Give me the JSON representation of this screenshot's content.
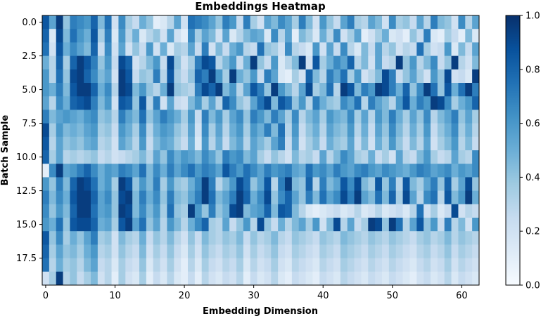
{
  "chart_data": {
    "type": "heatmap",
    "title": "Embeddings Heatmap",
    "xlabel": "Embedding Dimension",
    "ylabel": "Batch Sample",
    "colormap": "Blues",
    "color_low": "#f7fbff",
    "color_high": "#08306b",
    "n_rows": 20,
    "n_cols": 63,
    "xticks": [
      "0",
      "10",
      "20",
      "30",
      "40",
      "50",
      "60"
    ],
    "yticks": [
      "0.0",
      "2.5",
      "5.0",
      "7.5",
      "10.0",
      "12.5",
      "15.0",
      "17.5"
    ],
    "colorbar_ticks": [
      "0.0",
      "0.2",
      "0.4",
      "0.6",
      "0.8",
      "1.0"
    ],
    "vmin": 0.0,
    "vmax": 1.0,
    "values": [
      [
        0.85,
        0.55,
        0.95,
        0.4,
        0.7,
        0.65,
        0.6,
        0.8,
        0.45,
        0.75,
        0.2,
        0.65,
        0.35,
        0.25,
        0.5,
        0.4,
        0.1,
        0.15,
        0.3,
        0.55,
        0.2,
        0.75,
        0.7,
        0.65,
        0.55,
        0.4,
        0.7,
        0.6,
        0.25,
        0.7,
        0.35,
        0.2,
        0.55,
        0.45,
        0.65,
        0.55,
        0.35,
        0.7,
        0.45,
        0.2,
        0.6,
        0.4,
        0.25,
        0.55,
        0.7,
        0.35,
        0.3,
        0.55,
        0.45,
        0.2,
        0.65,
        0.35,
        0.4,
        0.25,
        0.55,
        0.3,
        0.7,
        0.45,
        0.4,
        0.2,
        0.65,
        0.3,
        0.55
      ],
      [
        0.8,
        0.15,
        0.9,
        0.45,
        0.75,
        0.6,
        0.5,
        0.85,
        0.35,
        0.7,
        0.15,
        0.6,
        0.3,
        0.5,
        0.15,
        0.3,
        0.4,
        0.2,
        0.55,
        0.2,
        0.1,
        0.65,
        0.35,
        0.55,
        0.45,
        0.2,
        0.55,
        0.15,
        0.3,
        0.45,
        0.55,
        0.5,
        0.15,
        0.65,
        0.3,
        0.55,
        0.1,
        0.45,
        0.35,
        0.15,
        0.5,
        0.3,
        0.65,
        0.2,
        0.35,
        0.55,
        0.1,
        0.2,
        0.35,
        0.5,
        0.15,
        0.2,
        0.1,
        0.4,
        0.25,
        0.7,
        0.15,
        0.1,
        0.35,
        0.25,
        0.1,
        0.45,
        0.15
      ],
      [
        0.75,
        0.2,
        0.85,
        0.5,
        0.65,
        0.55,
        0.45,
        0.8,
        0.25,
        0.65,
        0.2,
        0.55,
        0.2,
        0.4,
        0.25,
        0.6,
        0.2,
        0.5,
        0.15,
        0.35,
        0.3,
        0.55,
        0.25,
        0.7,
        0.2,
        0.45,
        0.25,
        0.5,
        0.6,
        0.3,
        0.25,
        0.75,
        0.4,
        0.35,
        0.2,
        0.65,
        0.3,
        0.25,
        0.15,
        0.6,
        0.2,
        0.55,
        0.25,
        0.65,
        0.3,
        0.15,
        0.45,
        0.25,
        0.55,
        0.3,
        0.4,
        0.2,
        0.3,
        0.25,
        0.75,
        0.35,
        0.2,
        0.25,
        0.6,
        0.15,
        0.45,
        0.25,
        0.55
      ],
      [
        0.5,
        0.3,
        0.8,
        0.35,
        0.8,
        0.95,
        0.85,
        0.7,
        0.4,
        0.6,
        0.25,
        0.9,
        0.8,
        0.2,
        0.3,
        0.45,
        0.6,
        0.25,
        0.9,
        0.4,
        0.2,
        0.35,
        0.7,
        0.9,
        0.85,
        0.3,
        0.45,
        0.6,
        0.25,
        0.5,
        0.95,
        0.4,
        0.25,
        0.6,
        0.15,
        0.3,
        0.45,
        0.95,
        0.2,
        0.85,
        0.35,
        0.5,
        0.65,
        0.55,
        0.8,
        0.3,
        0.45,
        0.2,
        0.55,
        0.25,
        0.3,
        0.95,
        0.4,
        0.6,
        0.3,
        0.45,
        0.65,
        0.25,
        0.4,
        0.95,
        0.3,
        0.2,
        0.45
      ],
      [
        0.6,
        0.3,
        0.75,
        0.4,
        0.9,
        0.95,
        0.8,
        0.65,
        0.45,
        0.55,
        0.2,
        0.95,
        0.85,
        0.25,
        0.4,
        0.35,
        0.7,
        0.3,
        0.85,
        0.35,
        0.25,
        0.4,
        0.8,
        0.7,
        0.95,
        0.6,
        0.35,
        0.95,
        0.5,
        0.4,
        0.6,
        0.25,
        0.7,
        0.55,
        0.15,
        0.1,
        0.35,
        0.2,
        0.8,
        0.45,
        0.3,
        0.7,
        0.55,
        0.75,
        0.35,
        0.6,
        0.2,
        0.3,
        0.45,
        0.9,
        0.7,
        0.25,
        0.4,
        0.55,
        0.35,
        0.2,
        0.6,
        0.4,
        0.9,
        0.2,
        0.25,
        0.15,
        0.95
      ],
      [
        0.6,
        0.5,
        0.7,
        0.45,
        0.85,
        0.95,
        0.95,
        0.8,
        0.5,
        0.65,
        0.3,
        0.95,
        0.9,
        0.45,
        0.6,
        0.4,
        0.3,
        0.5,
        0.95,
        0.4,
        0.35,
        0.3,
        0.7,
        0.9,
        0.8,
        0.95,
        0.45,
        0.6,
        0.3,
        0.55,
        0.85,
        0.7,
        0.4,
        0.95,
        0.6,
        0.45,
        0.3,
        0.55,
        0.9,
        0.35,
        0.45,
        0.75,
        0.3,
        0.95,
        0.85,
        0.45,
        0.7,
        0.6,
        0.95,
        0.9,
        0.7,
        0.5,
        0.8,
        0.4,
        0.65,
        0.95,
        0.75,
        0.4,
        0.85,
        0.5,
        0.75,
        0.95,
        0.7
      ],
      [
        0.55,
        0.3,
        0.65,
        0.5,
        0.8,
        0.85,
        0.9,
        0.7,
        0.45,
        0.6,
        0.2,
        0.85,
        0.8,
        0.4,
        0.85,
        0.3,
        0.7,
        0.2,
        0.55,
        0.25,
        0.2,
        0.45,
        0.6,
        0.35,
        0.55,
        0.3,
        0.8,
        0.65,
        0.4,
        0.3,
        0.55,
        0.75,
        0.9,
        0.45,
        0.85,
        0.75,
        0.4,
        0.6,
        0.3,
        0.7,
        0.5,
        0.4,
        0.35,
        0.65,
        0.55,
        0.75,
        0.3,
        0.7,
        0.55,
        0.45,
        0.3,
        0.6,
        0.85,
        0.5,
        0.7,
        0.6,
        0.95,
        0.9,
        0.65,
        0.35,
        0.5,
        0.6,
        0.8
      ],
      [
        0.7,
        0.45,
        0.55,
        0.6,
        0.55,
        0.5,
        0.6,
        0.65,
        0.4,
        0.45,
        0.3,
        0.7,
        0.55,
        0.45,
        0.75,
        0.4,
        0.55,
        0.7,
        0.6,
        0.5,
        0.35,
        0.6,
        0.25,
        0.7,
        0.45,
        0.6,
        0.35,
        0.55,
        0.65,
        0.4,
        0.7,
        0.6,
        0.45,
        0.7,
        0.55,
        0.35,
        0.65,
        0.3,
        0.45,
        0.55,
        0.35,
        0.6,
        0.5,
        0.45,
        0.65,
        0.35,
        0.55,
        0.3,
        0.6,
        0.45,
        0.7,
        0.5,
        0.35,
        0.55,
        0.4,
        0.65,
        0.3,
        0.45,
        0.55,
        0.7,
        0.4,
        0.55,
        0.35
      ],
      [
        0.9,
        0.35,
        0.6,
        0.45,
        0.5,
        0.45,
        0.55,
        0.6,
        0.35,
        0.4,
        0.25,
        0.6,
        0.5,
        0.35,
        0.65,
        0.3,
        0.5,
        0.6,
        0.55,
        0.4,
        0.3,
        0.55,
        0.2,
        0.65,
        0.35,
        0.55,
        0.3,
        0.5,
        0.6,
        0.35,
        0.6,
        0.5,
        0.7,
        0.45,
        0.75,
        0.3,
        0.6,
        0.25,
        0.4,
        0.5,
        0.3,
        0.55,
        0.45,
        0.4,
        0.6,
        0.3,
        0.5,
        0.25,
        0.55,
        0.4,
        0.65,
        0.45,
        0.3,
        0.5,
        0.35,
        0.6,
        0.25,
        0.4,
        0.5,
        0.65,
        0.35,
        0.5,
        0.3
      ],
      [
        0.85,
        0.3,
        0.55,
        0.4,
        0.45,
        0.4,
        0.5,
        0.55,
        0.3,
        0.35,
        0.2,
        0.55,
        0.45,
        0.3,
        0.6,
        0.25,
        0.45,
        0.55,
        0.5,
        0.35,
        0.25,
        0.5,
        0.15,
        0.6,
        0.3,
        0.5,
        0.25,
        0.45,
        0.55,
        0.3,
        0.55,
        0.45,
        0.35,
        0.55,
        0.7,
        0.25,
        0.55,
        0.2,
        0.35,
        0.45,
        0.25,
        0.5,
        0.4,
        0.35,
        0.55,
        0.25,
        0.45,
        0.2,
        0.5,
        0.35,
        0.6,
        0.4,
        0.25,
        0.45,
        0.3,
        0.55,
        0.2,
        0.35,
        0.45,
        0.6,
        0.3,
        0.45,
        0.25
      ],
      [
        0.8,
        0.35,
        0.55,
        0.3,
        0.35,
        0.3,
        0.35,
        0.4,
        0.25,
        0.3,
        0.2,
        0.25,
        0.3,
        0.35,
        0.45,
        0.3,
        0.55,
        0.4,
        0.65,
        0.5,
        0.6,
        0.55,
        0.45,
        0.65,
        0.55,
        0.4,
        0.7,
        0.6,
        0.65,
        0.45,
        0.55,
        0.35,
        0.25,
        0.4,
        0.3,
        0.2,
        0.45,
        0.3,
        0.35,
        0.25,
        0.55,
        0.3,
        0.45,
        0.65,
        0.55,
        0.35,
        0.3,
        0.5,
        0.25,
        0.35,
        0.2,
        0.55,
        0.3,
        0.25,
        0.45,
        0.6,
        0.35,
        0.25,
        0.3,
        0.55,
        0.35,
        0.3,
        0.65
      ],
      [
        0.1,
        0.65,
        0.95,
        0.55,
        0.6,
        0.7,
        0.8,
        0.65,
        0.5,
        0.6,
        0.55,
        0.7,
        0.65,
        0.55,
        0.75,
        0.45,
        0.65,
        0.5,
        0.7,
        0.55,
        0.65,
        0.75,
        0.6,
        0.7,
        0.65,
        0.55,
        0.85,
        0.7,
        0.6,
        0.75,
        0.65,
        0.55,
        0.7,
        0.6,
        0.65,
        0.7,
        0.55,
        0.5,
        0.75,
        0.6,
        0.65,
        0.55,
        0.7,
        0.6,
        0.55,
        0.65,
        0.7,
        0.6,
        0.55,
        0.65,
        0.6,
        0.55,
        0.5,
        0.6,
        0.7,
        0.65,
        0.55,
        0.6,
        0.65,
        0.5,
        0.6,
        0.55,
        0.65
      ],
      [
        0.6,
        0.4,
        0.7,
        0.45,
        0.8,
        0.95,
        0.9,
        0.75,
        0.5,
        0.6,
        0.35,
        0.95,
        0.85,
        0.4,
        0.6,
        0.45,
        0.7,
        0.35,
        0.6,
        0.4,
        0.35,
        0.5,
        0.65,
        0.95,
        0.7,
        0.3,
        0.45,
        0.6,
        0.9,
        0.75,
        0.4,
        0.55,
        0.85,
        0.3,
        0.7,
        0.95,
        0.45,
        0.4,
        0.8,
        0.3,
        0.7,
        0.45,
        0.55,
        0.85,
        0.65,
        0.9,
        0.45,
        0.35,
        0.85,
        0.4,
        0.7,
        0.3,
        0.85,
        0.45,
        0.35,
        0.55,
        0.7,
        0.4,
        0.8,
        0.35,
        0.55,
        0.9,
        0.4
      ],
      [
        0.7,
        0.45,
        0.65,
        0.5,
        0.85,
        0.95,
        0.95,
        0.8,
        0.55,
        0.65,
        0.4,
        0.9,
        0.95,
        0.45,
        0.7,
        0.5,
        0.65,
        0.4,
        0.7,
        0.45,
        0.4,
        0.55,
        0.7,
        0.95,
        0.75,
        0.45,
        0.55,
        0.7,
        0.95,
        0.8,
        0.5,
        0.65,
        0.9,
        0.4,
        0.65,
        0.8,
        0.55,
        0.4,
        0.7,
        0.45,
        0.75,
        0.55,
        0.65,
        0.9,
        0.7,
        0.95,
        0.55,
        0.45,
        0.75,
        0.45,
        0.8,
        0.35,
        0.9,
        0.55,
        0.3,
        0.65,
        0.75,
        0.3,
        0.85,
        0.45,
        0.6,
        0.95,
        0.5
      ],
      [
        0.65,
        0.4,
        0.6,
        0.45,
        0.8,
        0.95,
        0.95,
        0.75,
        0.55,
        0.6,
        0.4,
        0.95,
        0.9,
        0.45,
        0.65,
        0.45,
        0.6,
        0.35,
        0.75,
        0.4,
        0.35,
        0.95,
        0.6,
        0.4,
        0.7,
        0.4,
        0.5,
        0.9,
        0.95,
        0.45,
        0.55,
        0.6,
        0.8,
        0.45,
        0.85,
        0.8,
        0.45,
        0.3,
        0.15,
        0.1,
        0.15,
        0.2,
        0.25,
        0.15,
        0.2,
        0.3,
        0.15,
        0.2,
        0.3,
        0.15,
        0.2,
        0.25,
        0.15,
        0.3,
        0.75,
        0.2,
        0.35,
        0.15,
        0.25,
        0.9,
        0.2,
        0.3,
        0.25
      ],
      [
        0.6,
        0.5,
        0.75,
        0.4,
        0.85,
        0.9,
        0.9,
        0.8,
        0.5,
        0.55,
        0.35,
        0.85,
        0.95,
        0.55,
        0.75,
        0.4,
        0.55,
        0.3,
        0.6,
        0.45,
        0.3,
        0.5,
        0.65,
        0.8,
        0.35,
        0.3,
        0.55,
        0.25,
        0.4,
        0.6,
        0.3,
        0.9,
        0.4,
        0.25,
        0.5,
        0.3,
        0.45,
        0.55,
        0.35,
        0.6,
        0.2,
        0.45,
        0.9,
        0.3,
        0.55,
        0.25,
        0.35,
        0.95,
        0.9,
        0.4,
        0.95,
        0.75,
        0.3,
        0.55,
        0.85,
        0.4,
        0.6,
        0.25,
        0.7,
        0.3,
        0.45,
        0.2,
        0.6
      ],
      [
        0.85,
        0.4,
        0.65,
        0.35,
        0.5,
        0.4,
        0.55,
        0.7,
        0.35,
        0.4,
        0.2,
        0.45,
        0.35,
        0.3,
        0.5,
        0.25,
        0.4,
        0.3,
        0.45,
        0.3,
        0.2,
        0.4,
        0.25,
        0.45,
        0.35,
        0.3,
        0.4,
        0.35,
        0.45,
        0.25,
        0.4,
        0.3,
        0.35,
        0.45,
        0.3,
        0.25,
        0.4,
        0.35,
        0.3,
        0.25,
        0.4,
        0.35,
        0.3,
        0.45,
        0.4,
        0.35,
        0.3,
        0.4,
        0.35,
        0.3,
        0.4,
        0.35,
        0.3,
        0.25,
        0.35,
        0.4,
        0.3,
        0.35,
        0.45,
        0.3,
        0.4,
        0.35,
        0.3
      ],
      [
        0.8,
        0.35,
        0.55,
        0.4,
        0.45,
        0.35,
        0.5,
        0.6,
        0.3,
        0.35,
        0.2,
        0.4,
        0.3,
        0.25,
        0.45,
        0.2,
        0.35,
        0.25,
        0.4,
        0.25,
        0.15,
        0.35,
        0.2,
        0.4,
        0.3,
        0.25,
        0.35,
        0.3,
        0.4,
        0.2,
        0.35,
        0.25,
        0.3,
        0.4,
        0.25,
        0.2,
        0.35,
        0.3,
        0.25,
        0.2,
        0.35,
        0.3,
        0.25,
        0.4,
        0.35,
        0.3,
        0.25,
        0.35,
        0.3,
        0.25,
        0.35,
        0.3,
        0.25,
        0.2,
        0.3,
        0.35,
        0.25,
        0.3,
        0.4,
        0.25,
        0.35,
        0.3,
        0.25
      ],
      [
        0.75,
        0.3,
        0.5,
        0.35,
        0.4,
        0.3,
        0.45,
        0.55,
        0.25,
        0.3,
        0.15,
        0.35,
        0.25,
        0.2,
        0.4,
        0.15,
        0.3,
        0.2,
        0.35,
        0.2,
        0.1,
        0.3,
        0.15,
        0.35,
        0.25,
        0.2,
        0.3,
        0.25,
        0.35,
        0.15,
        0.3,
        0.2,
        0.25,
        0.35,
        0.2,
        0.15,
        0.3,
        0.25,
        0.2,
        0.15,
        0.3,
        0.25,
        0.2,
        0.35,
        0.3,
        0.25,
        0.2,
        0.3,
        0.25,
        0.2,
        0.3,
        0.25,
        0.2,
        0.15,
        0.25,
        0.3,
        0.2,
        0.25,
        0.35,
        0.2,
        0.3,
        0.25,
        0.2
      ],
      [
        0.2,
        0.35,
        0.95,
        0.3,
        0.4,
        0.25,
        0.35,
        0.45,
        0.2,
        0.3,
        0.1,
        0.35,
        0.2,
        0.15,
        0.35,
        0.1,
        0.25,
        0.15,
        0.3,
        0.15,
        0.1,
        0.25,
        0.1,
        0.3,
        0.2,
        0.15,
        0.25,
        0.2,
        0.3,
        0.1,
        0.25,
        0.15,
        0.2,
        0.3,
        0.15,
        0.1,
        0.25,
        0.2,
        0.15,
        0.1,
        0.25,
        0.2,
        0.15,
        0.3,
        0.25,
        0.2,
        0.15,
        0.25,
        0.2,
        0.15,
        0.25,
        0.2,
        0.15,
        0.1,
        0.2,
        0.25,
        0.15,
        0.2,
        0.3,
        0.15,
        0.25,
        0.2,
        0.15
      ]
    ]
  }
}
